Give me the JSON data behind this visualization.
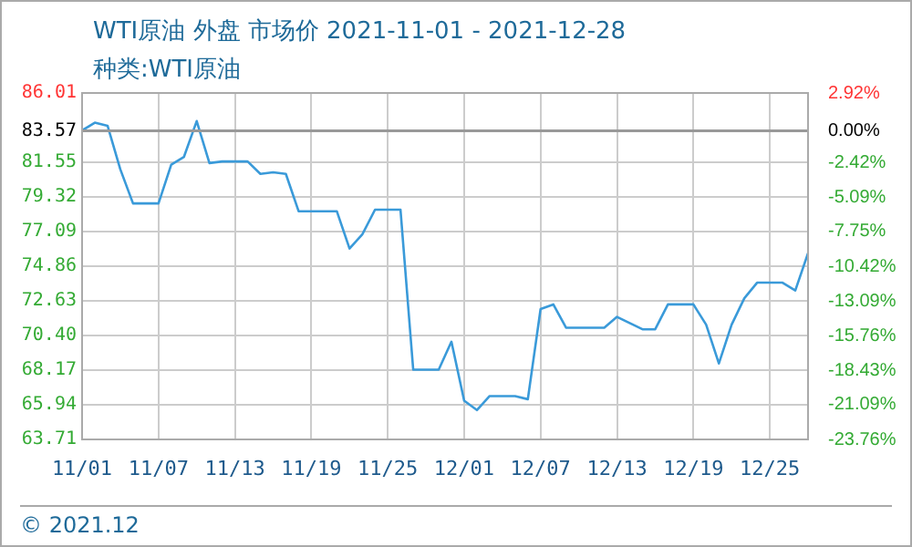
{
  "chart_data": {
    "type": "line",
    "title": "WTI原油 外盘 市场价 2021-11-01 - 2021-12-28",
    "subtitle": "种类:WTI原油",
    "x": [
      "2021-11-01",
      "2021-11-02",
      "2021-11-03",
      "2021-11-04",
      "2021-11-05",
      "2021-11-07",
      "2021-11-08",
      "2021-11-09",
      "2021-11-10",
      "2021-11-11",
      "2021-11-12",
      "2021-11-14",
      "2021-11-15",
      "2021-11-16",
      "2021-11-17",
      "2021-11-18",
      "2021-11-21",
      "2021-11-22",
      "2021-11-23",
      "2021-11-24",
      "2021-11-26",
      "2021-11-27",
      "2021-11-29",
      "2021-11-30",
      "2021-12-01",
      "2021-12-02",
      "2021-12-03",
      "2021-12-05",
      "2021-12-06",
      "2021-12-07",
      "2021-12-08",
      "2021-12-09",
      "2021-12-12",
      "2021-12-13",
      "2021-12-15",
      "2021-12-16",
      "2021-12-17",
      "2021-12-19",
      "2021-12-20",
      "2021-12-21",
      "2021-12-22",
      "2021-12-23",
      "2021-12-24",
      "2021-12-26",
      "2021-12-27",
      "2021-12-28"
    ],
    "series": [
      {
        "color": "#3a9ad9",
        "values": [
          83.6,
          84.1,
          83.9,
          81.1,
          78.9,
          78.9,
          81.4,
          81.9,
          84.2,
          81.5,
          81.6,
          81.6,
          80.8,
          80.9,
          80.8,
          78.4,
          78.4,
          76.0,
          76.9,
          78.5,
          78.5,
          68.2,
          68.2,
          70.0,
          66.2,
          65.6,
          66.5,
          66.5,
          66.3,
          72.1,
          72.4,
          70.9,
          70.9,
          71.6,
          70.8,
          70.8,
          72.4,
          72.4,
          71.1,
          68.6,
          71.1,
          72.8,
          73.8,
          73.8,
          73.3,
          75.7
        ]
      }
    ],
    "xlim": [
      "2021-11-01",
      "2021-12-28"
    ],
    "xticks": [
      {
        "value": "2021-11-01",
        "label": "11/01"
      },
      {
        "value": "2021-11-07",
        "label": "11/07"
      },
      {
        "value": "2021-11-13",
        "label": "11/13"
      },
      {
        "value": "2021-11-19",
        "label": "11/19"
      },
      {
        "value": "2021-11-25",
        "label": "11/25"
      },
      {
        "value": "2021-12-01",
        "label": "12/01"
      },
      {
        "value": "2021-12-07",
        "label": "12/07"
      },
      {
        "value": "2021-12-13",
        "label": "12/13"
      },
      {
        "value": "2021-12-19",
        "label": "12/19"
      },
      {
        "value": "2021-12-25",
        "label": "12/25"
      }
    ],
    "ylim": [
      63.71,
      86.01
    ],
    "yticks": [
      63.71,
      65.94,
      68.17,
      {
        "value": 70.4,
        "label": "70.40"
      },
      72.63,
      74.86,
      77.09,
      79.32,
      81.55,
      83.57,
      86.01
    ],
    "y2lim": [
      -23.76,
      2.92
    ],
    "y2ticks": [
      {
        "value": -23.76,
        "label": "-23.76%"
      },
      {
        "value": -21.09,
        "label": "-21.09%"
      },
      {
        "value": -18.43,
        "label": "-18.43%"
      },
      {
        "value": -15.76,
        "label": "-15.76%"
      },
      {
        "value": -13.09,
        "label": "-13.09%"
      },
      {
        "value": -10.42,
        "label": "-10.42%"
      },
      {
        "value": -7.75,
        "label": "-7.75%"
      },
      {
        "value": -5.09,
        "label": "-5.09%"
      },
      {
        "value": -2.42,
        "label": "-2.42%"
      },
      {
        "value": 0,
        "label": "0.00%"
      },
      {
        "value": 2.92,
        "label": "2.92%"
      }
    ],
    "ref_lines": [
      {
        "axis": "y",
        "value": 83.57,
        "color": "#999999"
      }
    ],
    "grid": true,
    "legend": false,
    "marker": "none",
    "line_style": "solid",
    "annotations": [
      "© 2021.12"
    ]
  }
}
